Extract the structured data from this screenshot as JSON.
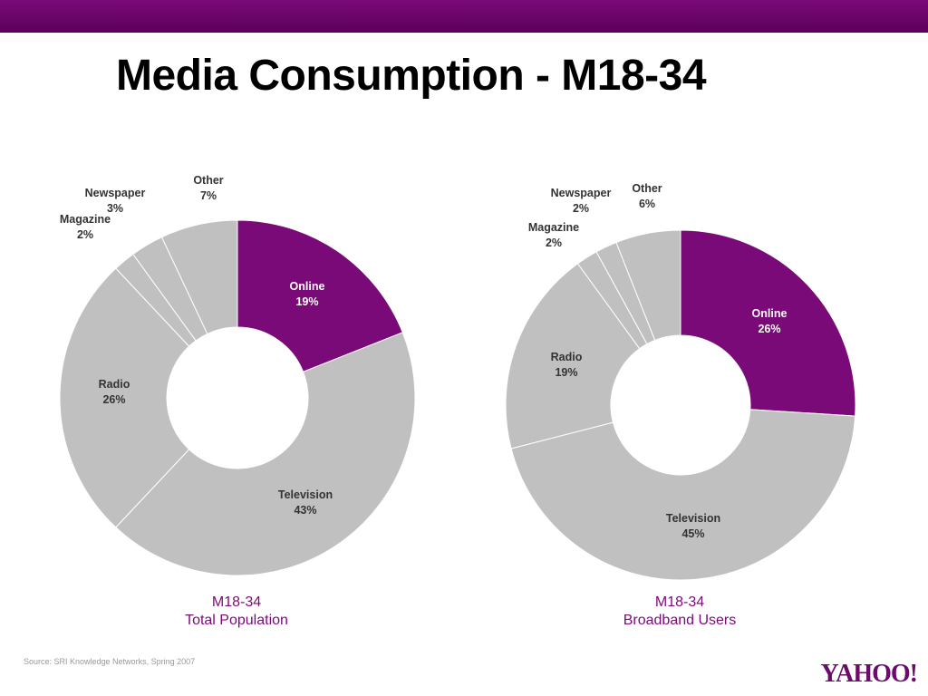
{
  "page": {
    "title": "Media Consumption - M18-34",
    "source": "Source: SRI Knowledge Networks, Spring 2007",
    "logo": "Yahoo!"
  },
  "colors": {
    "accent": "#7a0a78",
    "segment": "#c0c0c0",
    "divider": "#ffffff"
  },
  "chart_data": [
    {
      "type": "pie",
      "style": "donut",
      "caption_line1": "M18-34",
      "caption_line2": "Total Population",
      "slices": [
        {
          "label": "Online",
          "value": 19,
          "pct": "19%",
          "color": "#7a0a78"
        },
        {
          "label": "Television",
          "value": 43,
          "pct": "43%",
          "color": "#c0c0c0"
        },
        {
          "label": "Radio",
          "value": 26,
          "pct": "26%",
          "color": "#c0c0c0"
        },
        {
          "label": "Magazine",
          "value": 2,
          "pct": "2%",
          "color": "#c0c0c0"
        },
        {
          "label": "Newspaper",
          "value": 3,
          "pct": "3%",
          "color": "#c0c0c0"
        },
        {
          "label": "Other",
          "value": 7,
          "pct": "7%",
          "color": "#c0c0c0"
        }
      ]
    },
    {
      "type": "pie",
      "style": "donut",
      "caption_line1": "M18-34",
      "caption_line2": "Broadband Users",
      "slices": [
        {
          "label": "Online",
          "value": 26,
          "pct": "26%",
          "color": "#7a0a78"
        },
        {
          "label": "Television",
          "value": 45,
          "pct": "45%",
          "color": "#c0c0c0"
        },
        {
          "label": "Radio",
          "value": 19,
          "pct": "19%",
          "color": "#c0c0c0"
        },
        {
          "label": "Magazine",
          "value": 2,
          "pct": "2%",
          "color": "#c0c0c0"
        },
        {
          "label": "Newspaper",
          "value": 2,
          "pct": "2%",
          "color": "#c0c0c0"
        },
        {
          "label": "Other",
          "value": 6,
          "pct": "6%",
          "color": "#c0c0c0"
        }
      ]
    }
  ]
}
